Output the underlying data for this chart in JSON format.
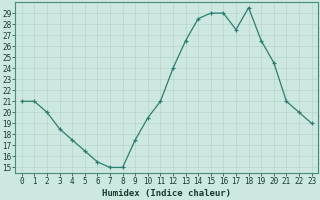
{
  "x": [
    0,
    1,
    2,
    3,
    4,
    5,
    6,
    7,
    8,
    9,
    10,
    11,
    12,
    13,
    14,
    15,
    16,
    17,
    18,
    19,
    20,
    21,
    22,
    23
  ],
  "y": [
    21.0,
    21.0,
    20.0,
    18.5,
    17.5,
    16.5,
    15.5,
    15.0,
    15.0,
    17.5,
    19.5,
    21.0,
    24.0,
    26.5,
    28.5,
    29.0,
    29.0,
    27.5,
    29.5,
    26.5,
    24.5,
    21.0,
    20.0,
    19.0
  ],
  "line_color": "#2e7d72",
  "marker": "+",
  "bg_color": "#cce8e0",
  "grid_color": "#b8d4cc",
  "xlabel": "Humidex (Indice chaleur)",
  "xlim": [
    -0.5,
    23.5
  ],
  "ylim": [
    14.5,
    30.0
  ],
  "xtick_labels": [
    "0",
    "1",
    "2",
    "3",
    "4",
    "5",
    "6",
    "7",
    "8",
    "9",
    "10",
    "11",
    "12",
    "13",
    "14",
    "15",
    "16",
    "17",
    "18",
    "19",
    "20",
    "21",
    "22",
    "23"
  ],
  "ytick_vals": [
    15,
    16,
    17,
    18,
    19,
    20,
    21,
    22,
    23,
    24,
    25,
    26,
    27,
    28,
    29
  ],
  "spine_color": "#4a8a80",
  "font_color": "#1a3a30",
  "tick_fontsize": 5.5,
  "xlabel_fontsize": 6.5
}
